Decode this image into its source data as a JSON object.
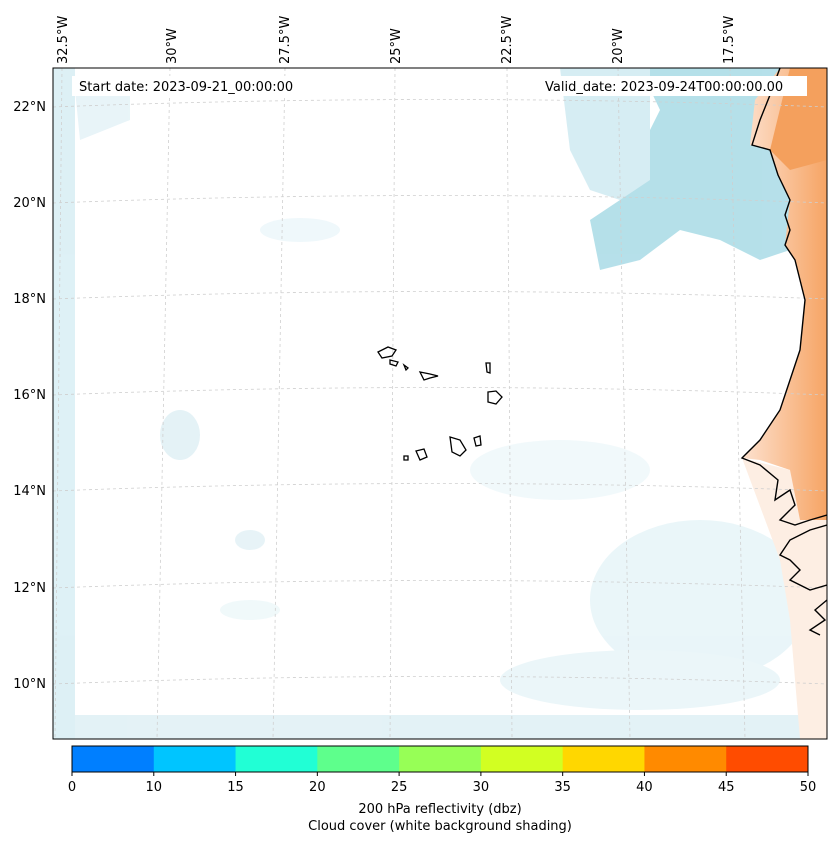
{
  "map": {
    "start_label": "Start date: 2023-09-21_00:00:00",
    "valid_label": "Valid_date: 2023-09-24T00:00:00.00",
    "lon_labels": [
      "32.5°W",
      "30°W",
      "27.5°W",
      "25°W",
      "22.5°W",
      "20°W",
      "17.5°W"
    ],
    "lat_labels": [
      "22°N",
      "20°N",
      "18°N",
      "16°N",
      "14°N",
      "12°N",
      "10°N"
    ]
  },
  "colorbar": {
    "ticks": [
      "0",
      "10",
      "15",
      "20",
      "25",
      "30",
      "35",
      "40",
      "45",
      "50"
    ],
    "colors": [
      "#007fff",
      "#00c5ff",
      "#21ffd5",
      "#5eff8c",
      "#97ff56",
      "#d2ff22",
      "#ffd700",
      "#ff8a00",
      "#ff4c00"
    ],
    "label_line1": "200 hPa reflectivity (dbz)",
    "label_line2": "Cloud cover (white background shading)"
  }
}
